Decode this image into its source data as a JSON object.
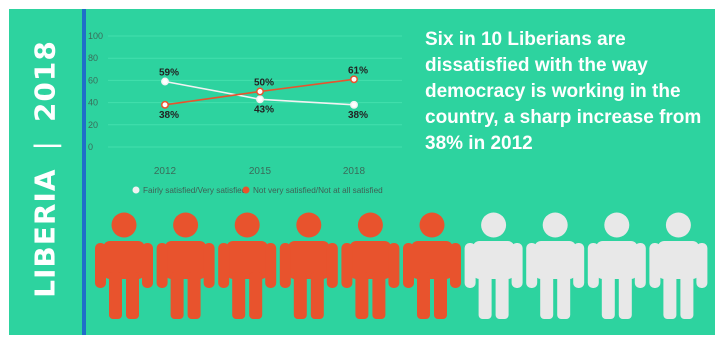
{
  "side_label": {
    "country": "LIBERIA",
    "year": "2018"
  },
  "headline": "Six in 10 Liberians are dissatisfied with the way democracy is working in the country, a sharp increase from 38% in 2012",
  "colors": {
    "background": "#2dd39f",
    "divider": "#1f6fc9",
    "satisfied": "#e8e8e8",
    "dissatisfied": "#e8532d",
    "text_dark": "#222222",
    "axis_text": "#3a6b5a"
  },
  "chart_data": {
    "type": "line",
    "x": [
      "2012",
      "2015",
      "2018"
    ],
    "ylim": [
      0,
      100
    ],
    "y_ticks": [
      "0",
      "20",
      "40",
      "60",
      "80",
      "100"
    ],
    "grid": true,
    "legend_position": "bottom",
    "series": [
      {
        "name": "Fairly satisfied/Very satisfied",
        "values": [
          59,
          43,
          38
        ],
        "labels": [
          "59%",
          "43%",
          "38%"
        ],
        "color": "#f2f2f2"
      },
      {
        "name": "Not very satisfied/Not at all satisfied",
        "values": [
          38,
          50,
          61
        ],
        "labels": [
          "38%",
          "50%",
          "61%"
        ],
        "color": "#e8532d"
      }
    ]
  },
  "pictogram": {
    "total": 10,
    "dissatisfied_count": 6,
    "icon": "person-icon"
  }
}
